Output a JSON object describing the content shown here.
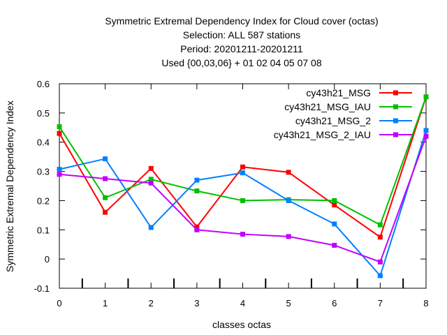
{
  "chart_data": {
    "type": "line",
    "title_lines": [
      "Symmetric Extremal Dependency Index  for Cloud cover (octas)",
      "Selection: ALL    587 stations",
      "Period: 20201211-20201211",
      "Used {00,03,06} + 01 02 04 05 07 08"
    ],
    "xlabel": "classes octas",
    "ylabel": "Symmetric Extremal Dependency Index",
    "x": [
      0,
      1,
      2,
      3,
      4,
      5,
      6,
      7,
      8
    ],
    "xlim": [
      0,
      8
    ],
    "ylim": [
      -0.1,
      0.6
    ],
    "x_ticks": [
      "0",
      "1",
      "2",
      "3",
      "4",
      "5",
      "6",
      "7",
      "8"
    ],
    "y_ticks": [
      "-0.1",
      "0",
      "0.1",
      "0.2",
      "0.3",
      "0.4",
      "0.5",
      "0.6"
    ],
    "minor_x_ticks": [
      0.5,
      1.5,
      2.5,
      3.5,
      4.5,
      5.5,
      6.5,
      7.5
    ],
    "grid": false,
    "legend_position": "top-right",
    "series": [
      {
        "name": "cy43h21_MSG",
        "color": "#ff0000",
        "values": [
          0.43,
          0.16,
          0.31,
          0.11,
          0.315,
          0.297,
          0.185,
          0.075,
          0.555
        ]
      },
      {
        "name": "cy43h21_MSG_IAU",
        "color": "#00c000",
        "values": [
          0.453,
          0.21,
          0.273,
          0.233,
          0.2,
          0.203,
          0.2,
          0.117,
          0.555
        ]
      },
      {
        "name": "cy43h21_MSG_2",
        "color": "#0080ff",
        "values": [
          0.307,
          0.343,
          0.108,
          0.27,
          0.295,
          0.2,
          0.12,
          -0.057,
          0.44
        ]
      },
      {
        "name": "cy43h21_MSG_2_IAU",
        "color": "#c000ff",
        "values": [
          0.29,
          0.275,
          0.26,
          0.1,
          0.085,
          0.077,
          0.047,
          -0.01,
          0.42
        ]
      }
    ]
  }
}
